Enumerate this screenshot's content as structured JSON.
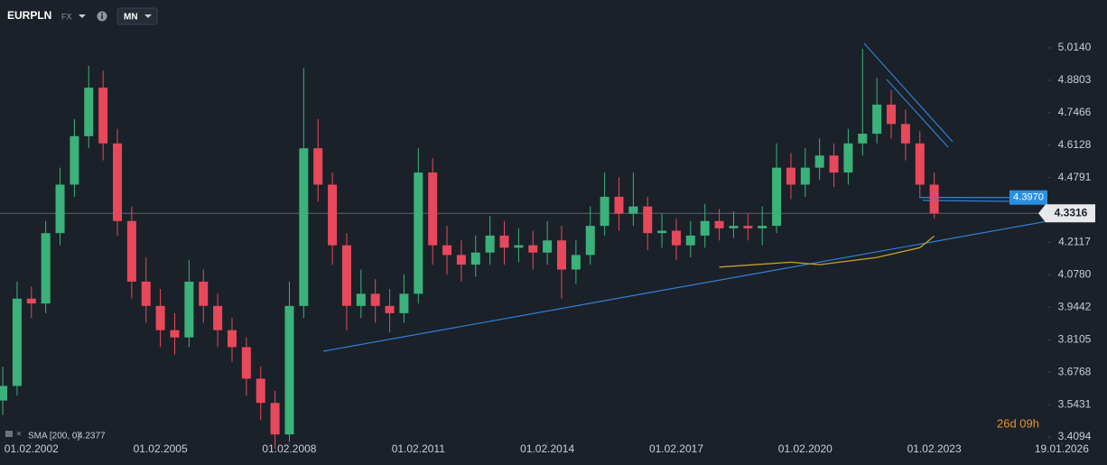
{
  "header": {
    "symbol": "EURPLN",
    "market": "FX",
    "interval": "MN"
  },
  "chart_data": {
    "type": "candlestick",
    "x": [
      "01.06.2001",
      "01.10.2001",
      "01.02.2002",
      "01.06.2002",
      "01.10.2002",
      "01.02.2003",
      "01.06.2003",
      "01.10.2003",
      "01.02.2004",
      "01.06.2004",
      "01.10.2004",
      "01.02.2005",
      "01.06.2005",
      "01.10.2005",
      "01.02.2006",
      "01.06.2006",
      "01.10.2006",
      "01.02.2007",
      "01.06.2007",
      "01.10.2007",
      "01.02.2008",
      "01.06.2008",
      "01.10.2008",
      "01.02.2009",
      "01.06.2009",
      "01.10.2009",
      "01.02.2010",
      "01.06.2010",
      "01.10.2010",
      "01.02.2011",
      "01.06.2011",
      "01.10.2011",
      "01.02.2012",
      "01.06.2012",
      "01.10.2012",
      "01.02.2013",
      "01.06.2013",
      "01.10.2013",
      "01.02.2014",
      "01.06.2014",
      "01.10.2014",
      "01.02.2015",
      "01.06.2015",
      "01.10.2015",
      "01.02.2016",
      "01.06.2016",
      "01.10.2016",
      "01.02.2017",
      "01.06.2017",
      "01.10.2017",
      "01.02.2018",
      "01.06.2018",
      "01.10.2018",
      "01.02.2019",
      "01.06.2019",
      "01.10.2019",
      "01.02.2020",
      "01.06.2020",
      "01.10.2020",
      "01.02.2021",
      "01.06.2021",
      "01.10.2021",
      "01.02.2022",
      "01.06.2022",
      "01.10.2022",
      "01.02.2023"
    ],
    "open": [
      3.56,
      3.62,
      3.98,
      3.96,
      4.25,
      4.45,
      4.65,
      4.85,
      4.62,
      4.3,
      4.05,
      3.95,
      3.85,
      3.82,
      4.05,
      3.95,
      3.85,
      3.78,
      3.65,
      3.55,
      3.42,
      3.95,
      4.6,
      4.45,
      4.2,
      3.95,
      4.0,
      3.95,
      3.92,
      4.0,
      4.5,
      4.2,
      4.16,
      4.12,
      4.17,
      4.24,
      4.19,
      4.2,
      4.17,
      4.22,
      4.1,
      4.16,
      4.28,
      4.4,
      4.33,
      4.36,
      4.25,
      4.26,
      4.2,
      4.24,
      4.3,
      4.27,
      4.28,
      4.27,
      4.28,
      4.52,
      4.45,
      4.52,
      4.57,
      4.5,
      4.62,
      4.66,
      4.78,
      4.7,
      4.62,
      4.45
    ],
    "high": [
      3.7,
      4.05,
      4.03,
      4.3,
      4.52,
      4.72,
      4.94,
      4.92,
      4.68,
      4.36,
      4.15,
      4.02,
      3.92,
      4.14,
      4.1,
      4.0,
      3.9,
      3.82,
      3.7,
      3.6,
      4.05,
      4.93,
      4.72,
      4.5,
      4.25,
      4.1,
      4.06,
      4.02,
      4.08,
      4.6,
      4.56,
      4.28,
      4.22,
      4.24,
      4.32,
      4.3,
      4.27,
      4.26,
      4.3,
      4.28,
      4.22,
      4.36,
      4.5,
      4.48,
      4.5,
      4.4,
      4.33,
      4.31,
      4.3,
      4.37,
      4.35,
      4.34,
      4.33,
      4.36,
      4.62,
      4.58,
      4.6,
      4.64,
      4.62,
      4.68,
      5.01,
      4.89,
      4.84,
      4.76,
      4.67,
      4.5
    ],
    "low": [
      3.5,
      3.58,
      3.9,
      3.92,
      4.2,
      4.4,
      4.6,
      4.55,
      4.24,
      3.98,
      3.88,
      3.78,
      3.75,
      3.78,
      3.88,
      3.78,
      3.72,
      3.58,
      3.48,
      3.36,
      3.39,
      3.9,
      4.38,
      4.12,
      3.85,
      3.9,
      3.88,
      3.84,
      3.88,
      3.96,
      4.12,
      4.08,
      4.05,
      4.07,
      4.12,
      4.12,
      4.13,
      4.1,
      4.12,
      3.98,
      4.04,
      4.12,
      4.24,
      4.26,
      4.28,
      4.18,
      4.19,
      4.14,
      4.15,
      4.19,
      4.22,
      4.23,
      4.22,
      4.2,
      4.25,
      4.39,
      4.4,
      4.47,
      4.44,
      4.45,
      4.57,
      4.62,
      4.64,
      4.55,
      4.4,
      4.31
    ],
    "close": [
      3.62,
      3.98,
      3.96,
      4.25,
      4.45,
      4.65,
      4.85,
      4.62,
      4.3,
      4.05,
      3.95,
      3.85,
      3.82,
      4.05,
      3.95,
      3.85,
      3.78,
      3.65,
      3.55,
      3.42,
      3.95,
      4.6,
      4.45,
      4.2,
      3.95,
      4.0,
      3.95,
      3.92,
      4.0,
      4.5,
      4.2,
      4.16,
      4.12,
      4.17,
      4.24,
      4.19,
      4.2,
      4.17,
      4.22,
      4.1,
      4.16,
      4.28,
      4.4,
      4.33,
      4.36,
      4.25,
      4.26,
      4.2,
      4.24,
      4.3,
      4.27,
      4.28,
      4.27,
      4.28,
      4.52,
      4.45,
      4.52,
      4.57,
      4.5,
      4.62,
      4.66,
      4.78,
      4.7,
      4.62,
      4.45,
      4.3316
    ],
    "up_color": "#3bb27a",
    "down_color": "#e8485b",
    "xlim": [
      "08.05.2001",
      "08.02.2027"
    ],
    "ylim": [
      3.3871,
      5.0996
    ],
    "xticks": [
      "01.02.2002",
      "01.02.2005",
      "01.02.2008",
      "01.02.2011",
      "01.02.2014",
      "01.02.2017",
      "01.02.2020",
      "01.02.2023",
      "19.01.2026"
    ],
    "yticks": [
      {
        "value": 5.014,
        "label": "5.0140"
      },
      4.8803,
      4.7466,
      4.6128,
      4.4791,
      4.2117,
      {
        "value": 4.078,
        "label": "4.0780"
      },
      3.9442,
      3.8105,
      3.6768,
      3.5431,
      3.4094
    ],
    "levels": [
      {
        "value": 4.397,
        "label": "4.3970",
        "color": "#2a8fe0"
      }
    ],
    "indicators": [
      {
        "type": "line",
        "name": "SMA [200, 0]",
        "color": "#c9a227",
        "x": [
          "01.02.2018",
          "01.10.2019",
          "01.06.2020",
          "01.10.2021",
          "01.10.2022",
          "01.02.2023"
        ],
        "values": [
          4.11,
          4.13,
          4.12,
          4.15,
          4.19,
          4.2377
        ]
      }
    ],
    "countdown": "26d 09h"
  }
}
